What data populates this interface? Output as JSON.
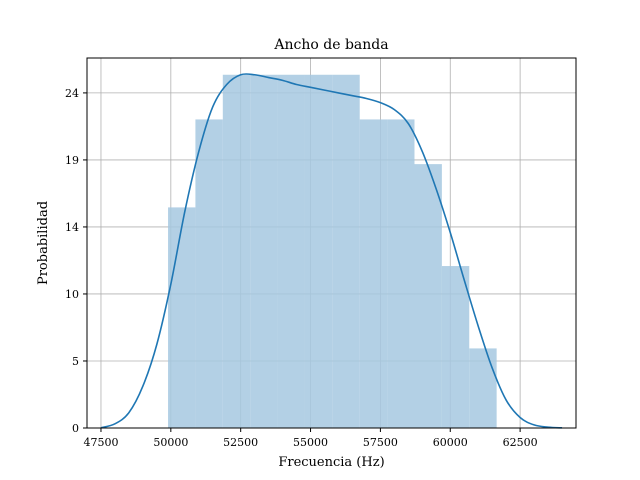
{
  "chart_data": {
    "type": "bar",
    "title": "Ancho de banda",
    "xlabel": "Frecuencia (Hz)",
    "ylabel": "Probabilidad",
    "xlim": [
      47000,
      64500
    ],
    "ylim": [
      0,
      26.5
    ],
    "x_ticks": [
      47500,
      50000,
      52500,
      55000,
      57500,
      60000,
      62500
    ],
    "y_ticks": [
      0,
      5,
      10,
      14,
      19,
      24
    ],
    "y_tick_values": [
      0,
      4.8,
      9.6,
      14.4,
      19.2,
      24.0
    ],
    "grid": true,
    "histogram": {
      "bin_edges": [
        49900,
        50880,
        51860,
        52840,
        53820,
        54800,
        55780,
        56760,
        57740,
        58720,
        59700,
        60680,
        61660
      ],
      "values": [
        15.8,
        22.1,
        25.3,
        25.3,
        25.3,
        25.3,
        25.3,
        22.1,
        22.1,
        18.9,
        11.6,
        5.7
      ],
      "color": "#a6c8e0"
    },
    "kde": {
      "color": "#1f77b4",
      "x": [
        47500,
        48000,
        48500,
        49000,
        49500,
        50000,
        50500,
        51000,
        51500,
        52000,
        52500,
        53000,
        53500,
        54000,
        54500,
        55000,
        55500,
        56000,
        56500,
        57000,
        57500,
        58000,
        58500,
        59000,
        59500,
        60000,
        60500,
        61000,
        61500,
        62000,
        62500,
        63000,
        63500,
        64000
      ],
      "y": [
        0.02,
        0.3,
        1.1,
        3.0,
        6.0,
        10.3,
        15.5,
        19.8,
        23.0,
        24.6,
        25.3,
        25.3,
        25.1,
        24.9,
        24.6,
        24.4,
        24.2,
        24.0,
        23.8,
        23.6,
        23.3,
        22.8,
        21.8,
        19.8,
        17.1,
        14.0,
        10.6,
        7.3,
        4.3,
        2.0,
        0.75,
        0.22,
        0.06,
        0.01
      ]
    }
  }
}
